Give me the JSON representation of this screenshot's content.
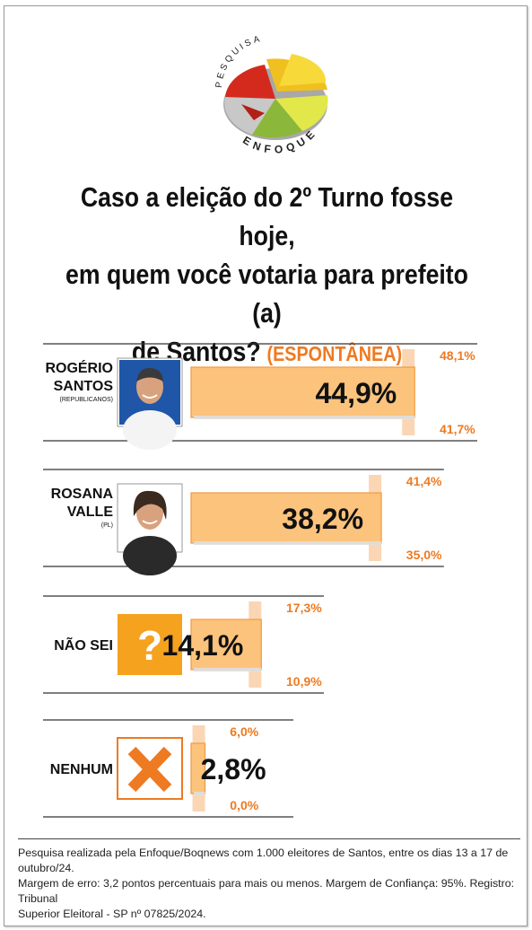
{
  "brand": {
    "top_text": "PESQUISA",
    "bottom_text": "ENFOQUE"
  },
  "question": {
    "line1": "Caso a eleição do 2º Turno fosse hoje,",
    "line2": "em quem você votaria para prefeito (a)",
    "line3": "de Santos?",
    "tag": "(ESPONTÂNEA)"
  },
  "colors": {
    "bar_fill": "#fbc37c",
    "bar_border": "#f29a3f",
    "margin_band": "#f9cfa8",
    "accent_orange": "#ee7a22",
    "icon_orange": "#f5a21f"
  },
  "chart_data": {
    "type": "bar",
    "orientation": "horizontal",
    "title": "Caso a eleição do 2º Turno fosse hoje, em quem você votaria para prefeito (a) de Santos? (ESPONTÂNEA)",
    "categories": [
      "ROGÉRIO SANTOS",
      "ROSANA VALLE",
      "NÃO SEI",
      "NENHUM"
    ],
    "category_parties": [
      "(REPUBLICANOS)",
      "(PL)",
      "",
      ""
    ],
    "values": [
      44.9,
      38.2,
      14.1,
      2.8
    ],
    "value_labels": [
      "44,9%",
      "38,2%",
      "14,1%",
      "2,8%"
    ],
    "upper": [
      48.1,
      41.4,
      17.3,
      6.0
    ],
    "upper_labels": [
      "48,1%",
      "41,4%",
      "17,3%",
      "6,0%"
    ],
    "lower": [
      41.7,
      35.0,
      10.9,
      0.0
    ],
    "lower_labels": [
      "41,7%",
      "35,0%",
      "10,9%",
      "0,0%"
    ],
    "icons": [
      "photo-man",
      "photo-woman",
      "question-icon",
      "x-icon"
    ],
    "xlim": [
      0,
      48.1
    ],
    "grid": false,
    "legend": "none"
  },
  "footer": {
    "line1": "Pesquisa realizada pela Enfoque/Boqnews com 1.000 eleitores de Santos, entre os dias 13 a 17 de outubro/24.",
    "line2": "Margem de erro: 3,2 pontos percentuais para mais ou menos. Margem de Confiança: 95%. Registro: Tribunal",
    "line3": "Superior Eleitoral - SP nº 07825/2024."
  }
}
